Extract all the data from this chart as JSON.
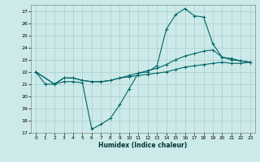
{
  "xlabel": "Humidex (Indice chaleur)",
  "bg_color": "#cceaea",
  "grid_color": "#aacccc",
  "line_color": "#006666",
  "xlim": [
    -0.5,
    23.5
  ],
  "ylim": [
    17,
    27.5
  ],
  "yticks": [
    17,
    18,
    19,
    20,
    21,
    22,
    23,
    24,
    25,
    26,
    27
  ],
  "xticks": [
    0,
    1,
    2,
    3,
    4,
    5,
    6,
    7,
    8,
    9,
    10,
    11,
    12,
    13,
    14,
    15,
    16,
    17,
    18,
    19,
    20,
    21,
    22,
    23
  ],
  "line1_x": [
    0,
    1,
    2,
    3,
    4,
    5,
    6,
    7,
    8,
    9,
    10,
    11,
    12,
    13,
    14,
    15,
    16,
    17,
    18,
    19,
    20,
    21,
    22,
    23
  ],
  "line1_y": [
    22,
    21,
    21,
    21.2,
    21.2,
    21.1,
    17.3,
    17.7,
    18.2,
    19.3,
    20.6,
    21.9,
    22,
    22.5,
    25.5,
    26.7,
    27.2,
    26.6,
    26.5,
    24.3,
    23.2,
    23.0,
    22.9,
    22.8
  ],
  "line2_x": [
    0,
    2,
    3,
    4,
    5,
    6,
    7,
    8,
    9,
    10,
    11,
    12,
    13,
    14,
    15,
    16,
    17,
    18,
    19,
    20,
    21,
    22,
    23
  ],
  "line2_y": [
    22,
    21,
    21.5,
    21.5,
    21.3,
    21.2,
    21.2,
    21.3,
    21.5,
    21.7,
    21.9,
    22.1,
    22.3,
    22.6,
    23.0,
    23.3,
    23.5,
    23.7,
    23.8,
    23.2,
    23.1,
    22.9,
    22.8
  ],
  "line3_x": [
    0,
    2,
    3,
    4,
    5,
    6,
    7,
    8,
    9,
    10,
    11,
    12,
    13,
    14,
    15,
    16,
    17,
    18,
    19,
    20,
    21,
    22,
    23
  ],
  "line3_y": [
    22,
    21,
    21.5,
    21.5,
    21.3,
    21.2,
    21.2,
    21.3,
    21.5,
    21.6,
    21.7,
    21.8,
    21.9,
    22.0,
    22.2,
    22.4,
    22.5,
    22.6,
    22.7,
    22.8,
    22.7,
    22.7,
    22.8
  ]
}
